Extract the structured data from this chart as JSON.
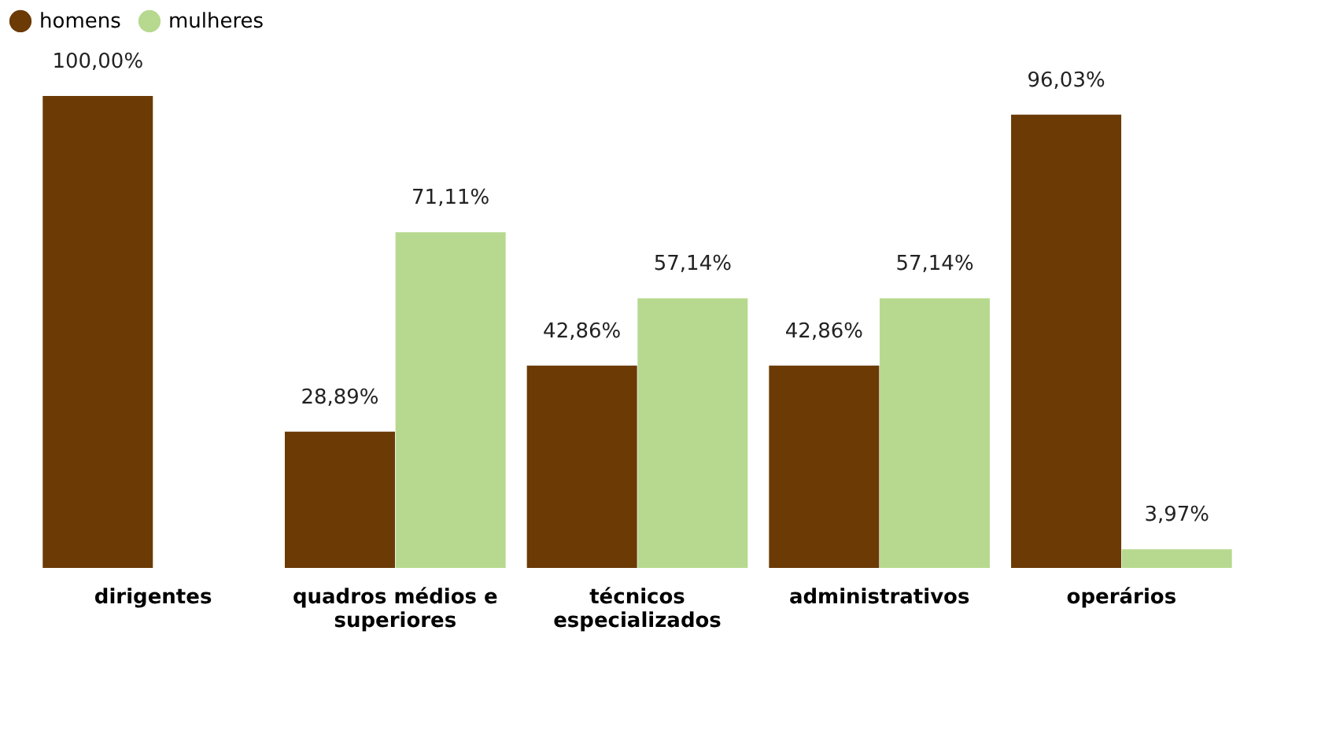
{
  "chart_data": {
    "type": "bar",
    "categories": [
      "dirigentes",
      "quadros médios e superiores",
      "técnicos especializados",
      "administrativos",
      "operários"
    ],
    "series": [
      {
        "name": "homens",
        "color": "#6b3a05",
        "values": [
          100,
          28.89,
          42.86,
          42.86,
          96.03
        ],
        "value_labels": [
          "100,00%",
          "28,89%",
          "42,86%",
          "42,86%",
          "96,03%"
        ]
      },
      {
        "name": "mulheres",
        "color": "#b7d98f",
        "values": [
          null,
          71.11,
          57.14,
          57.14,
          3.97
        ],
        "value_labels": [
          null,
          "71,11%",
          "57,14%",
          "57,14%",
          "3,97%"
        ]
      }
    ],
    "legend": "top left",
    "grid": false
  }
}
